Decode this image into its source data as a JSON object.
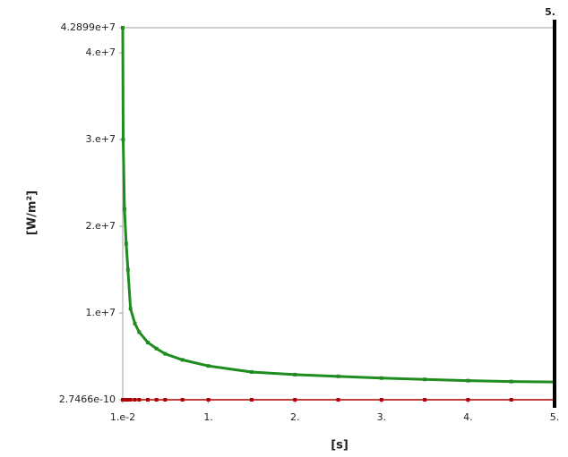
{
  "chart_data": {
    "type": "line",
    "xlabel": "[s]",
    "ylabel": "[W/m²]",
    "x": [
      0.01,
      0.015,
      0.03,
      0.05,
      0.07,
      0.1,
      0.15,
      0.2,
      0.3,
      0.4,
      0.5,
      0.7,
      1,
      1.5,
      2,
      2.5,
      3,
      3.5,
      4,
      4.5,
      5
    ],
    "series": [
      {
        "color": "#1e8c1e",
        "values": [
          42899000,
          30000000,
          22000000,
          18000000,
          15000000,
          10500000,
          8800000,
          7800000,
          6600000,
          5900000,
          5300000,
          4600000,
          3900000,
          3200000,
          2900000,
          2700000,
          2500000,
          2350000,
          2200000,
          2100000,
          2050000
        ]
      },
      {
        "color": "#b00000",
        "values": [
          0,
          0,
          0,
          0,
          0,
          0,
          0,
          0,
          0,
          0,
          0,
          0,
          0,
          0,
          0,
          0,
          0,
          0,
          0,
          0,
          0
        ]
      }
    ],
    "xlim": [
      0.01,
      5
    ],
    "ylim": [
      2.7466e-10,
      42899000
    ],
    "xticks": [
      {
        "value": 0.01,
        "label": "1.e-2"
      },
      {
        "value": 1,
        "label": "1."
      },
      {
        "value": 2,
        "label": "2."
      },
      {
        "value": 3,
        "label": "3."
      },
      {
        "value": 4,
        "label": "4."
      },
      {
        "value": 5,
        "label": "5."
      }
    ],
    "yticks": [
      {
        "value": 2.7466e-10,
        "label": "2.7466e-10"
      },
      {
        "value": 10000000,
        "label": "1.e+7"
      },
      {
        "value": 20000000,
        "label": "2.e+7"
      },
      {
        "value": 30000000,
        "label": "3.e+7"
      },
      {
        "value": 40000000,
        "label": "4.e+7"
      },
      {
        "value": 42899000,
        "label": "4.2899e+7"
      }
    ],
    "cursor": {
      "value": 5,
      "label": "5."
    }
  }
}
